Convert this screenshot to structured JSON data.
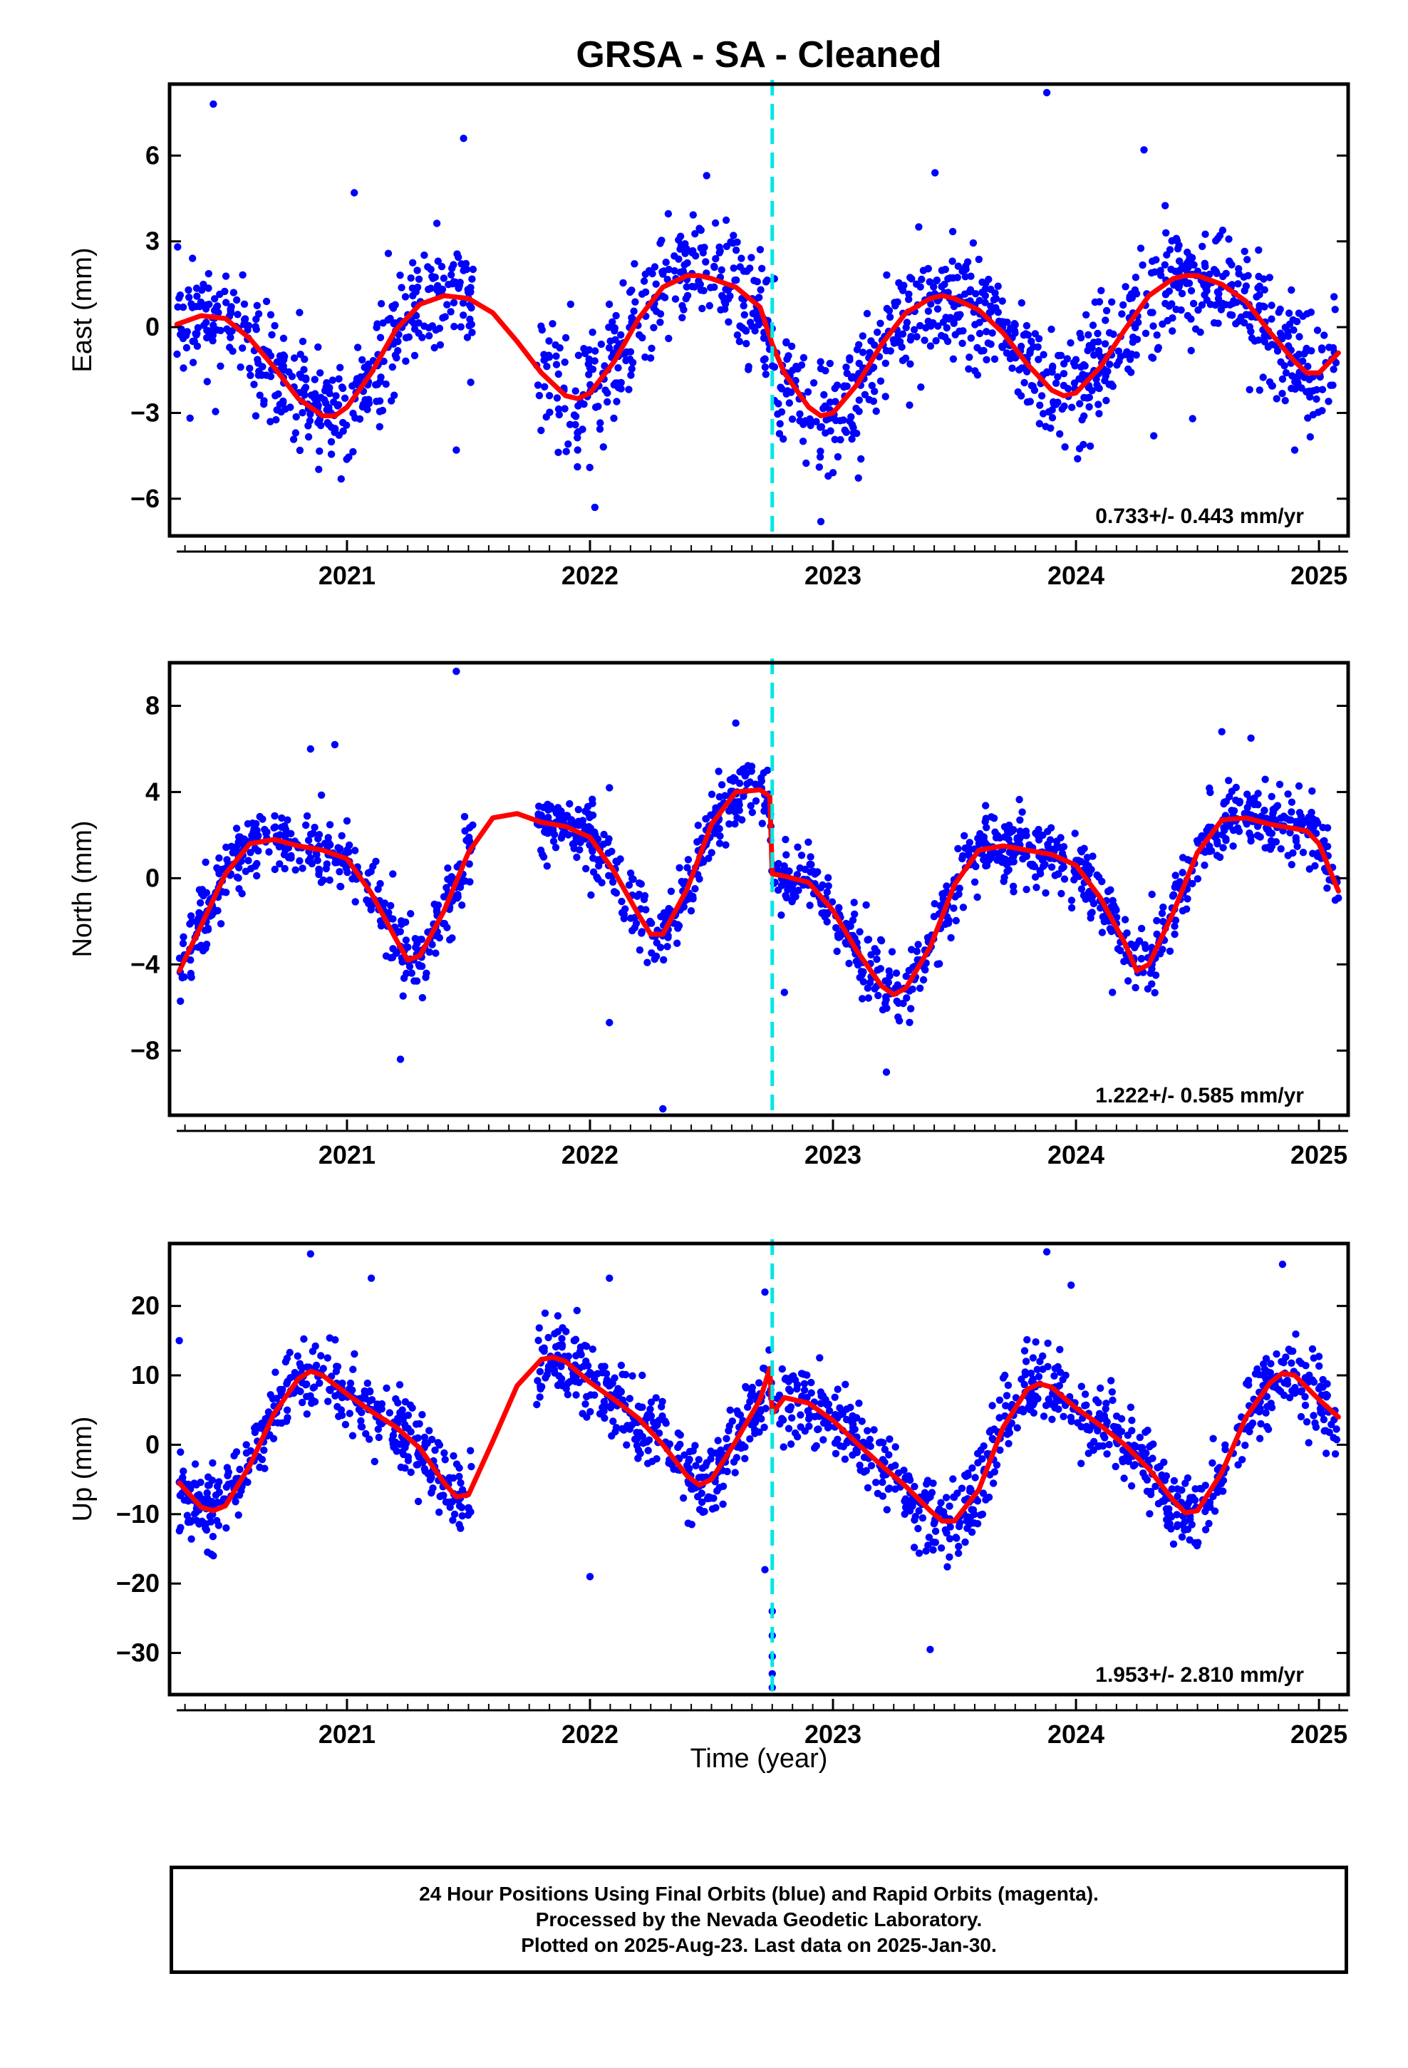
{
  "chart_data": [
    {
      "type": "scatter",
      "panel": "east",
      "title": "GRSA  - SA - Cleaned",
      "ylabel": "East (mm)",
      "xlabel": "",
      "xlim": [
        2020.27,
        2025.12
      ],
      "ylim": [
        -7.3,
        8.5
      ],
      "yticks": [
        -6,
        -3,
        0,
        3,
        6
      ],
      "xticks": [
        2021,
        2022,
        2023,
        2024,
        2025
      ],
      "grid": false,
      "marker_color": "#0000ff",
      "fit_color": "#ff0000",
      "break_color": "#00e5e5",
      "break_x": 2022.75,
      "rate_label": "0.733+/- 0.443 mm/yr",
      "fit": {
        "x": [
          2020.3,
          2020.4,
          2020.5,
          2020.6,
          2020.7,
          2020.8,
          2020.9,
          2020.95,
          2021.0,
          2021.1,
          2021.2,
          2021.3,
          2021.4,
          2021.5,
          2021.6,
          2021.7,
          2021.8,
          2021.9,
          2021.95,
          2022.0,
          2022.1,
          2022.2,
          2022.3,
          2022.4,
          2022.45,
          2022.5,
          2022.6,
          2022.7,
          2022.75,
          2022.8,
          2022.9,
          2022.95,
          2023.0,
          2023.1,
          2023.2,
          2023.3,
          2023.4,
          2023.45,
          2023.5,
          2023.6,
          2023.7,
          2023.8,
          2023.9,
          2023.95,
          2024.0,
          2024.1,
          2024.2,
          2024.3,
          2024.4,
          2024.45,
          2024.5,
          2024.6,
          2024.7,
          2024.8,
          2024.9,
          2024.95,
          2025.0,
          2025.08
        ],
        "y": [
          0.1,
          0.4,
          0.3,
          -0.4,
          -1.4,
          -2.5,
          -3.1,
          -3.1,
          -2.8,
          -1.6,
          -0.1,
          0.8,
          1.1,
          1.0,
          0.5,
          -0.5,
          -1.6,
          -2.4,
          -2.5,
          -2.3,
          -1.2,
          0.3,
          1.4,
          1.8,
          1.8,
          1.7,
          1.4,
          0.7,
          -0.6,
          -1.6,
          -2.8,
          -3.1,
          -3.0,
          -2.0,
          -0.6,
          0.5,
          1.0,
          1.1,
          1.0,
          0.6,
          -0.2,
          -1.3,
          -2.2,
          -2.4,
          -2.3,
          -1.4,
          -0.1,
          1.1,
          1.7,
          1.8,
          1.8,
          1.5,
          0.9,
          -0.2,
          -1.2,
          -1.6,
          -1.6,
          -0.9
        ]
      },
      "points_model": {
        "breaks": [
          2020.3,
          2020.8,
          2021.0,
          2021.5,
          2021.7,
          2021.85,
          2022.0,
          2022.3,
          2022.7,
          2022.75,
          2023.0,
          2023.5,
          2023.9,
          2024.0,
          2024.3,
          2024.7,
          2024.9,
          2025.05
        ],
        "gaps": [
          [
            2021.52,
            2021.78
          ]
        ],
        "scatter": 1.8,
        "outliers": [
          [
            2020.45,
            7.8
          ],
          [
            2021.48,
            6.6
          ],
          [
            2021.03,
            4.7
          ],
          [
            2023.88,
            8.2
          ],
          [
            2024.28,
            6.2
          ],
          [
            2022.48,
            5.3
          ],
          [
            2023.42,
            5.4
          ],
          [
            2022.95,
            -6.8
          ],
          [
            2022.02,
            -6.3
          ],
          [
            2021.45,
            -4.3
          ],
          [
            2024.32,
            -3.8
          ],
          [
            2024.48,
            -3.2
          ],
          [
            2024.9,
            -4.3
          ]
        ]
      }
    },
    {
      "type": "scatter",
      "panel": "north",
      "ylabel": "North (mm)",
      "xlabel": "",
      "xlim": [
        2020.27,
        2025.12
      ],
      "ylim": [
        -11,
        10
      ],
      "yticks": [
        -8,
        -4,
        0,
        4,
        8
      ],
      "xticks": [
        2021,
        2022,
        2023,
        2024,
        2025
      ],
      "grid": false,
      "marker_color": "#0000ff",
      "fit_color": "#ff0000",
      "break_color": "#00e5e5",
      "break_x": 2022.75,
      "rate_label": "1.222+/- 0.585 mm/yr",
      "fit": {
        "x": [
          2020.31,
          2020.4,
          2020.5,
          2020.6,
          2020.7,
          2020.8,
          2020.9,
          2021.0,
          2021.1,
          2021.2,
          2021.25,
          2021.3,
          2021.4,
          2021.5,
          2021.6,
          2021.7,
          2021.8,
          2021.9,
          2022.0,
          2022.1,
          2022.2,
          2022.25,
          2022.3,
          2022.4,
          2022.5,
          2022.6,
          2022.7,
          2022.74,
          2022.75,
          2022.8,
          2022.9,
          2023.0,
          2023.1,
          2023.2,
          2023.25,
          2023.3,
          2023.4,
          2023.5,
          2023.6,
          2023.7,
          2023.8,
          2023.9,
          2024.0,
          2024.1,
          2024.2,
          2024.25,
          2024.3,
          2024.4,
          2024.5,
          2024.6,
          2024.7,
          2024.8,
          2024.9,
          2024.95,
          2025.0,
          2025.08
        ],
        "y": [
          -4.3,
          -2.2,
          0.2,
          1.6,
          1.8,
          1.5,
          1.3,
          0.9,
          -0.7,
          -2.8,
          -3.8,
          -3.6,
          -1.5,
          1.2,
          2.8,
          3.0,
          2.6,
          2.4,
          1.9,
          0.3,
          -1.7,
          -2.6,
          -2.6,
          -0.5,
          2.5,
          4.0,
          4.1,
          3.8,
          0.2,
          0.1,
          -0.2,
          -1.5,
          -3.4,
          -5.0,
          -5.4,
          -5.1,
          -3.2,
          -0.3,
          1.3,
          1.5,
          1.3,
          1.1,
          0.6,
          -0.9,
          -3.0,
          -4.3,
          -4.0,
          -1.6,
          1.2,
          2.7,
          2.8,
          2.5,
          2.3,
          2.2,
          1.6,
          -0.6
        ]
      },
      "points_model": {
        "breaks": [
          2020.31,
          2021.0,
          2021.25,
          2021.5,
          2021.8,
          2022.0,
          2022.25,
          2022.74,
          2022.75,
          2023.25,
          2023.6,
          2024.0,
          2024.25,
          2024.95,
          2025.08
        ],
        "gaps": [
          [
            2021.52,
            2021.78
          ]
        ],
        "scatter": 1.4,
        "outliers": [
          [
            2021.45,
            9.6
          ],
          [
            2022.3,
            -10.7
          ],
          [
            2021.22,
            -8.4
          ],
          [
            2023.22,
            -9.0
          ],
          [
            2022.08,
            -6.7
          ],
          [
            2022.6,
            7.2
          ],
          [
            2024.6,
            6.8
          ],
          [
            2020.85,
            6.0
          ],
          [
            2020.95,
            6.2
          ],
          [
            2024.72,
            6.5
          ],
          [
            2022.08,
            4.2
          ],
          [
            2022.8,
            -5.3
          ],
          [
            2024.15,
            -5.3
          ]
        ]
      }
    },
    {
      "type": "scatter",
      "panel": "up",
      "ylabel": "Up (mm)",
      "xlabel": "Time (year)",
      "xlim": [
        2020.27,
        2025.12
      ],
      "ylim": [
        -36,
        29
      ],
      "yticks": [
        -30,
        -20,
        -10,
        0,
        10,
        20
      ],
      "xticks": [
        2021,
        2022,
        2023,
        2024,
        2025
      ],
      "grid": false,
      "marker_color": "#0000ff",
      "fit_color": "#ff0000",
      "break_color": "#00e5e5",
      "break_x": 2022.75,
      "rate_label": "1.953+/- 2.810 mm/yr",
      "fit": {
        "x": [
          2020.31,
          2020.4,
          2020.45,
          2020.5,
          2020.6,
          2020.7,
          2020.8,
          2020.85,
          2020.9,
          2021.0,
          2021.1,
          2021.2,
          2021.3,
          2021.4,
          2021.45,
          2021.5,
          2021.6,
          2021.7,
          2021.8,
          2021.85,
          2021.9,
          2022.0,
          2022.1,
          2022.2,
          2022.3,
          2022.4,
          2022.45,
          2022.5,
          2022.6,
          2022.7,
          2022.74,
          2022.75,
          2022.8,
          2022.9,
          2023.0,
          2023.1,
          2023.2,
          2023.3,
          2023.4,
          2023.45,
          2023.5,
          2023.6,
          2023.7,
          2023.8,
          2023.85,
          2023.9,
          2024.0,
          2024.1,
          2024.2,
          2024.3,
          2024.4,
          2024.45,
          2024.5,
          2024.6,
          2024.7,
          2024.8,
          2024.85,
          2024.9,
          2025.0,
          2025.08
        ],
        "y": [
          -5.5,
          -9.0,
          -9.5,
          -8.8,
          -3.0,
          4.5,
          9.5,
          10.6,
          10.0,
          7.3,
          4.8,
          2.6,
          -0.5,
          -5.5,
          -7.5,
          -7.2,
          0.5,
          8.5,
          12.3,
          12.6,
          12.0,
          9.0,
          6.5,
          3.8,
          0.0,
          -4.5,
          -5.8,
          -5.0,
          0.5,
          6.5,
          11.0,
          4.5,
          6.8,
          6.0,
          3.5,
          0.2,
          -3.0,
          -6.0,
          -9.5,
          -11.0,
          -11.0,
          -6.5,
          2.5,
          8.0,
          8.8,
          8.3,
          5.3,
          2.8,
          0.0,
          -3.5,
          -8.0,
          -9.8,
          -9.5,
          -4.0,
          4.0,
          9.0,
          10.3,
          10.0,
          6.5,
          4.0
        ]
      },
      "points_model": {
        "breaks": [
          2020.31,
          2020.45,
          2020.85,
          2021.0,
          2021.45,
          2021.8,
          2021.85,
          2022.0,
          2022.45,
          2022.74,
          2022.75,
          2023.0,
          2023.45,
          2023.85,
          2024.0,
          2024.45,
          2024.85,
          2025.08
        ],
        "gaps": [
          [
            2021.52,
            2021.78
          ]
        ],
        "scatter": 5.0,
        "outliers": [
          [
            2022.75,
            -35.0
          ],
          [
            2022.75,
            -33.0
          ],
          [
            2022.75,
            -30.5
          ],
          [
            2022.75,
            -27.5
          ],
          [
            2022.75,
            -24.0
          ],
          [
            2020.45,
            -16.0
          ],
          [
            2022.08,
            24.0
          ],
          [
            2022.0,
            -19.0
          ],
          [
            2022.72,
            -18.0
          ],
          [
            2023.4,
            -29.5
          ],
          [
            2023.88,
            27.8
          ],
          [
            2020.85,
            27.5
          ],
          [
            2024.85,
            26.0
          ],
          [
            2022.72,
            22.0
          ],
          [
            2023.98,
            23.0
          ],
          [
            2020.31,
            15.0
          ],
          [
            2021.1,
            24.0
          ]
        ]
      }
    }
  ],
  "footer": {
    "line1": "24 Hour Positions Using Final Orbits (blue) and Rapid Orbits (magenta).",
    "line2": "Processed by the Nevada Geodetic Laboratory.",
    "line3": "Plotted on 2025-Aug-23. Last data on 2025-Jan-30."
  }
}
